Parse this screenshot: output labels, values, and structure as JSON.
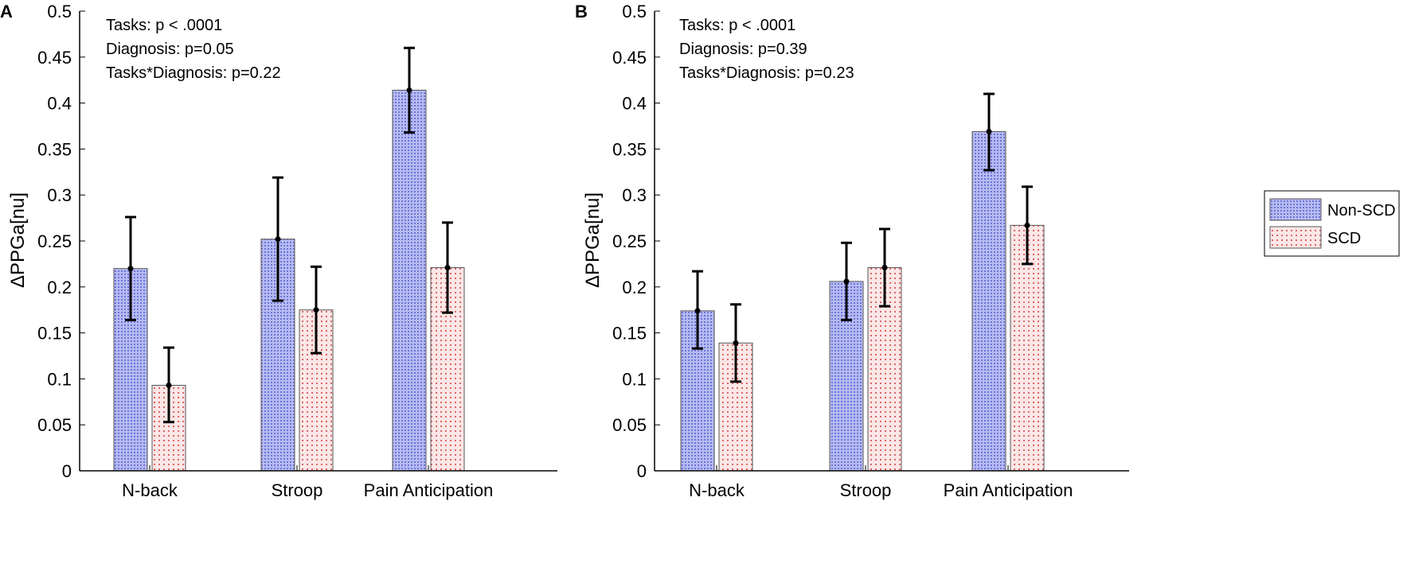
{
  "colors": {
    "non_scd_fill": "#b6bbf2",
    "non_scd_dot": "#6f74d8",
    "scd_fill": "#fbe7e7",
    "scd_dot": "#e06666",
    "axis": "#000000",
    "error_bar": "#000000"
  },
  "chart_data": [
    {
      "panel": "A",
      "type": "bar",
      "ylabel": "ΔPPGa[nu]",
      "ylim": [
        0,
        0.5
      ],
      "yticks": [
        "0",
        "0.05",
        "0.1",
        "0.15",
        "0.2",
        "0.25",
        "0.3",
        "0.35",
        "0.4",
        "0.45",
        "0.5"
      ],
      "categories": [
        "N-back",
        "Stroop",
        "Pain Anticipation"
      ],
      "series": [
        {
          "name": "Non-SCD",
          "values": [
            0.22,
            0.252,
            0.414
          ],
          "err_low": [
            0.164,
            0.185,
            0.368
          ],
          "err_high": [
            0.276,
            0.319,
            0.46
          ]
        },
        {
          "name": "SCD",
          "values": [
            0.093,
            0.175,
            0.221
          ],
          "err_low": [
            0.053,
            0.128,
            0.172
          ],
          "err_high": [
            0.134,
            0.222,
            0.27
          ]
        }
      ],
      "annotations": [
        "Tasks: p < .0001",
        "Diagnosis: p=0.05",
        "Tasks*Diagnosis: p=0.22"
      ]
    },
    {
      "panel": "B",
      "type": "bar",
      "ylabel": "ΔPPGa[nu]",
      "ylim": [
        0,
        0.5
      ],
      "yticks": [
        "0",
        "0.05",
        "0.1",
        "0.15",
        "0.2",
        "0.25",
        "0.3",
        "0.35",
        "0.4",
        "0.45",
        "0.5"
      ],
      "categories": [
        "N-back",
        "Stroop",
        "Pain Anticipation"
      ],
      "series": [
        {
          "name": "Non-SCD",
          "values": [
            0.174,
            0.206,
            0.369
          ],
          "err_low": [
            0.133,
            0.164,
            0.327
          ],
          "err_high": [
            0.217,
            0.248,
            0.41
          ]
        },
        {
          "name": "SCD",
          "values": [
            0.139,
            0.221,
            0.267
          ],
          "err_low": [
            0.097,
            0.179,
            0.225
          ],
          "err_high": [
            0.181,
            0.263,
            0.309
          ]
        }
      ],
      "annotations": [
        "Tasks: p < .0001",
        "Diagnosis: p=0.39",
        "Tasks*Diagnosis: p=0.23"
      ],
      "legend": {
        "placement": "right",
        "entries": [
          "Non-SCD",
          "SCD"
        ]
      }
    }
  ]
}
